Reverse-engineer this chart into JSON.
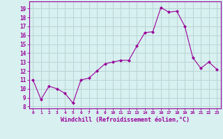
{
  "x": [
    0,
    1,
    2,
    3,
    4,
    5,
    6,
    7,
    8,
    9,
    10,
    11,
    12,
    13,
    14,
    15,
    16,
    17,
    18,
    19,
    20,
    21,
    22,
    23
  ],
  "y": [
    11.0,
    8.8,
    10.3,
    10.0,
    9.5,
    8.4,
    11.0,
    11.2,
    12.0,
    12.8,
    13.0,
    13.2,
    13.2,
    14.8,
    16.3,
    16.4,
    19.1,
    18.6,
    18.7,
    17.0,
    13.5,
    12.3,
    13.0,
    12.2
  ],
  "line_color": "#990099",
  "marker": "D",
  "marker_size": 2,
  "bg_color": "#d8f0f0",
  "grid_color": "#b8d4d4",
  "xlabel": "Windchill (Refroidissement éolien,°C)",
  "ylabel_ticks": [
    8,
    9,
    10,
    11,
    12,
    13,
    14,
    15,
    16,
    17,
    18,
    19
  ],
  "ylim": [
    7.8,
    19.8
  ],
  "xlim": [
    -0.5,
    23.5
  ],
  "axis_label_color": "#990099",
  "tick_color": "#990099"
}
